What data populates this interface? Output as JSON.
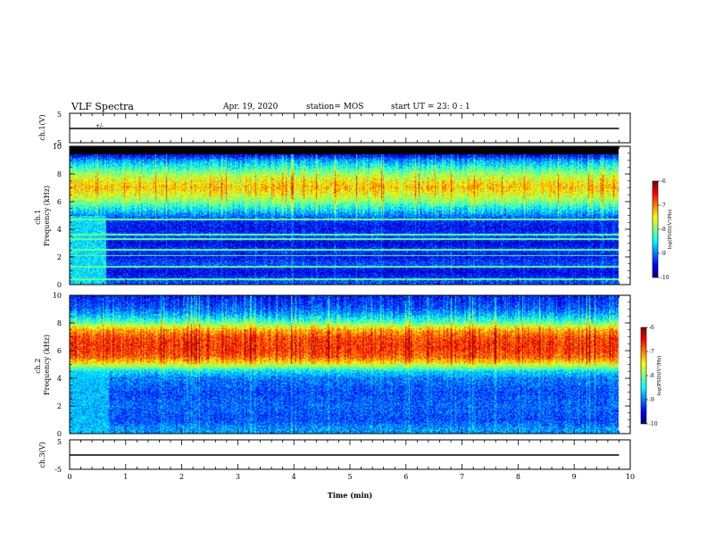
{
  "header": {
    "title": "VLF Spectra",
    "date": "Apr. 19, 2020",
    "station": "station= MOS",
    "start": "start  UT  =   23: 0   : 1"
  },
  "colors": {
    "axis": "#000000",
    "waveform": "#000000",
    "spectrogram_background": "#000000",
    "colormap": [
      "#00007f",
      "#0000ff",
      "#007fff",
      "#00ffff",
      "#7fff7f",
      "#ffff00",
      "#ff7f00",
      "#ff0000",
      "#7f0000"
    ]
  },
  "chart_data": [
    {
      "type": "line",
      "name": "ch1-waveform",
      "ylabel": "ch.1(V)",
      "ylim": [
        -5,
        5
      ],
      "yticks": [
        "5",
        "-5"
      ],
      "xlim": [
        0,
        10
      ],
      "x": [
        0,
        9.8
      ],
      "y": [
        0,
        0
      ],
      "annotation": "+/-"
    },
    {
      "type": "heatmap",
      "name": "ch1-spectrogram",
      "ylabel": "ch.1\nFrequency (kHz)",
      "ylim": [
        0,
        10
      ],
      "yticks": [
        "10",
        "8",
        "6",
        "4",
        "2",
        "0"
      ],
      "xlim": [
        0,
        10
      ],
      "data_end_min": 9.8,
      "colorbar": {
        "label": "log(PSD)(V²/Hz)",
        "range": [
          -10,
          -6
        ],
        "ticks": [
          "-6",
          "-7",
          "-8",
          "-9",
          "-10"
        ]
      },
      "profile": {
        "freq_khz": [
          0.3,
          0.9,
          1.5,
          2.0,
          2.5,
          3.0,
          3.5,
          4.0,
          4.5,
          5.0,
          5.5,
          6.0,
          6.5,
          7.0,
          7.5,
          8.0,
          8.5,
          9.0,
          9.3
        ],
        "log_psd": [
          -9.2,
          -9.6,
          -9.2,
          -9.5,
          -9.3,
          -9.6,
          -9.2,
          -9.5,
          -9.4,
          -9.0,
          -8.5,
          -8.0,
          -7.6,
          -7.3,
          -7.5,
          -7.9,
          -8.4,
          -8.9,
          -9.5
        ]
      },
      "black_above_khz": 9.4,
      "lines_khz": [
        0.4,
        1.3,
        2.1,
        2.5,
        3.3,
        3.6,
        4.7
      ],
      "early_segment_end_min": 0.65,
      "early_segment_log_psd": -8.6
    },
    {
      "type": "heatmap",
      "name": "ch2-spectrogram",
      "ylabel": "ch.2\nFrequency (kHz)",
      "ylim": [
        0,
        10
      ],
      "yticks": [
        "10",
        "8",
        "6",
        "4",
        "2",
        "0"
      ],
      "xlim": [
        0,
        10
      ],
      "data_end_min": 9.8,
      "colorbar": {
        "label": "log(PSD)(V²/Hz)",
        "range": [
          -10,
          -6
        ],
        "ticks": [
          "-6",
          "-7",
          "-8",
          "-9",
          "-10"
        ]
      },
      "profile": {
        "freq_khz": [
          0.3,
          1.0,
          2.0,
          3.0,
          4.0,
          4.5,
          5.0,
          5.5,
          6.0,
          6.5,
          7.0,
          7.5,
          8.0,
          8.5,
          9.0,
          9.5,
          9.9
        ],
        "log_psd": [
          -8.9,
          -9.2,
          -9.1,
          -9.2,
          -9.0,
          -8.6,
          -7.6,
          -6.9,
          -6.7,
          -6.7,
          -6.8,
          -7.2,
          -8.1,
          -8.7,
          -9.1,
          -9.3,
          -9.4
        ],
        "early_segment_end_min": 0.7,
        "early_segment_log_psd": -8.8
      }
    },
    {
      "type": "line",
      "name": "ch3-waveform",
      "ylabel": "ch.3(V)",
      "ylim": [
        -5,
        5
      ],
      "yticks": [
        "5",
        "-5"
      ],
      "xlim": [
        0,
        10
      ],
      "x": [
        0,
        9.8
      ],
      "y": [
        0,
        0
      ],
      "xlabel": "Time (min)",
      "xticks": [
        "0",
        "1",
        "2",
        "3",
        "4",
        "5",
        "6",
        "7",
        "8",
        "9",
        "10"
      ]
    }
  ]
}
